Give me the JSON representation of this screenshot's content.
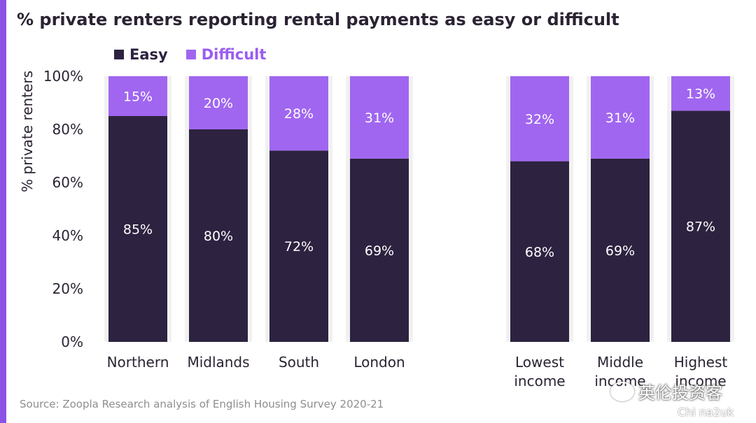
{
  "title": "% private renters reporting rental payments as easy or difficult",
  "source": "Source: Zoopla Research analysis of English Housing Survey 2020-21",
  "watermark": {
    "text": "英伦投资客",
    "sub": "Chi na2uk"
  },
  "colors": {
    "easy": "#2d2240",
    "difficult": "#a066f0",
    "accent": "#8b52e6",
    "bar_bg": "#f1f1f1"
  },
  "chart_data": {
    "type": "bar",
    "stacked": true,
    "title": "% private renters reporting rental payments as easy or difficult",
    "ylabel": "% private renters",
    "xlabel": "",
    "ylim": [
      0,
      100
    ],
    "yticks": [
      "0%",
      "20%",
      "40%",
      "60%",
      "80%",
      "100%"
    ],
    "legend": [
      "Easy",
      "Difficult"
    ],
    "legend_position": "top-left",
    "grid": false,
    "categories": [
      [
        "Northern"
      ],
      [
        "Midlands"
      ],
      [
        "South"
      ],
      [
        "London"
      ],
      [
        "Lowest",
        "income"
      ],
      [
        "Middle",
        "income"
      ],
      [
        "Highest",
        "income"
      ]
    ],
    "series": [
      {
        "name": "Easy",
        "values": [
          85,
          80,
          72,
          69,
          68,
          69,
          87
        ],
        "labels": [
          "85%",
          "80%",
          "72%",
          "69%",
          "68%",
          "69%",
          "87%"
        ]
      },
      {
        "name": "Difficult",
        "values": [
          15,
          20,
          28,
          31,
          32,
          31,
          13
        ],
        "labels": [
          "15%",
          "20%",
          "28%",
          "31%",
          "32%",
          "31%",
          "13%"
        ]
      }
    ]
  }
}
